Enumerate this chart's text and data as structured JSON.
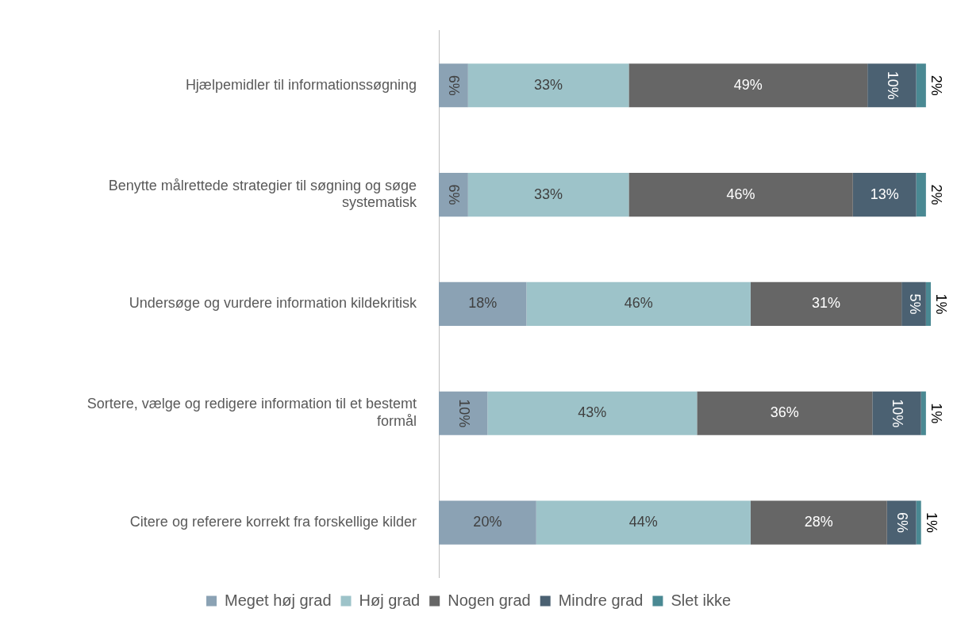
{
  "chart_data": {
    "type": "bar",
    "orientation": "horizontal",
    "stacked": true,
    "legend": "bottom",
    "grid": false,
    "tick_labels": "y",
    "categories": [
      "Hjælpemidler til informationssøgning",
      "Benytte målrettede strategier til søgning og søge systematisk",
      "Undersøge og vurdere information kildekritisk",
      "Sortere, vælge og redigere information til et bestemt formål",
      "Citere og referere korrekt fra forskellige kilder"
    ],
    "series": [
      {
        "name": "Meget høj grad",
        "color": "#8ba2b4",
        "values": [
          6,
          6,
          18,
          10,
          20
        ],
        "value_labels": [
          "6%",
          "6%",
          "18%",
          "10%",
          "20%"
        ]
      },
      {
        "name": "Høj grad",
        "color": "#9dc3c9",
        "values": [
          33,
          33,
          46,
          43,
          44
        ],
        "value_labels": [
          "33%",
          "33%",
          "46%",
          "43%",
          "44%"
        ]
      },
      {
        "name": "Nogen grad",
        "color": "#666666",
        "values": [
          49,
          46,
          31,
          36,
          28
        ],
        "value_labels": [
          "49%",
          "46%",
          "31%",
          "36%",
          "28%"
        ]
      },
      {
        "name": "Mindre grad",
        "color": "#4b6172",
        "values": [
          10,
          13,
          5,
          10,
          6
        ],
        "value_labels": [
          "10%",
          "13%",
          "5%",
          "10%",
          "6%"
        ]
      },
      {
        "name": "Slet ikke",
        "color": "#4a8993",
        "values": [
          2,
          2,
          1,
          1,
          1
        ],
        "value_labels": [
          "2%",
          "2%",
          "1%",
          "1%",
          "1%"
        ]
      }
    ]
  }
}
